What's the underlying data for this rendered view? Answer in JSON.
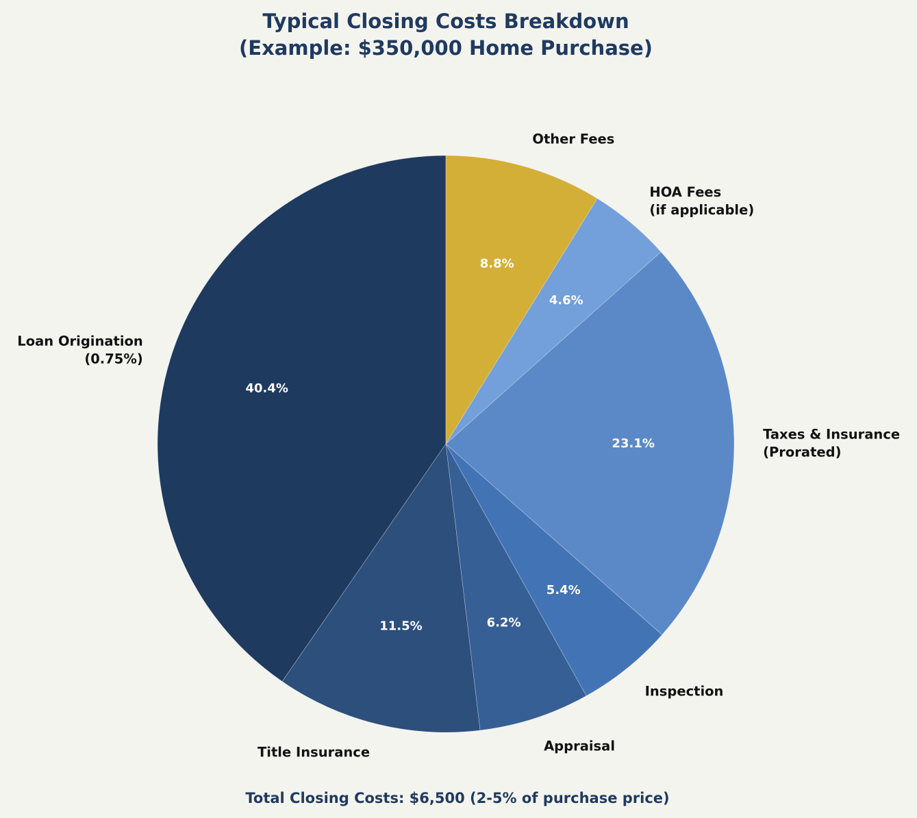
{
  "chart_data": {
    "type": "pie",
    "title": [
      "Typical Closing Costs Breakdown",
      "(Example: $350,000 Home Purchase)"
    ],
    "start": "top",
    "direction": "counterclockwise",
    "slices": [
      {
        "label": [
          "Loan Origination",
          "(0.75%)"
        ],
        "value": 40.4,
        "pct_label": "40.4%",
        "color": "#1f3a5f"
      },
      {
        "label": [
          "Title Insurance"
        ],
        "value": 11.5,
        "pct_label": "11.5%",
        "color": "#2c4f7c"
      },
      {
        "label": [
          "Appraisal"
        ],
        "value": 6.2,
        "pct_label": "6.2%",
        "color": "#365f96"
      },
      {
        "label": [
          "Inspection"
        ],
        "value": 5.4,
        "pct_label": "5.4%",
        "color": "#4274b5"
      },
      {
        "label": [
          "Taxes & Insurance",
          "(Prorated)"
        ],
        "value": 23.1,
        "pct_label": "23.1%",
        "color": "#5b89c8"
      },
      {
        "label": [
          "HOA Fees",
          "(if applicable)"
        ],
        "value": 4.6,
        "pct_label": "4.6%",
        "color": "#739fdb"
      },
      {
        "label": [
          "Other Fees"
        ],
        "value": 8.8,
        "pct_label": "8.8%",
        "color": "#d4af37"
      }
    ],
    "footer": "Total Closing Costs: $6,500 (2-5% of purchase price)"
  }
}
